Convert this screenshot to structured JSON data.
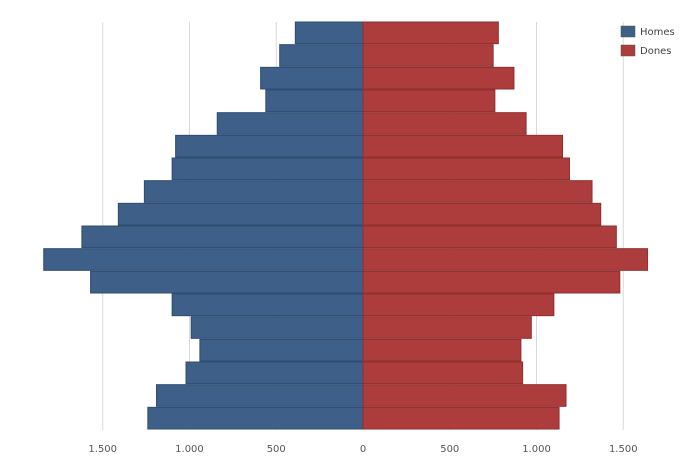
{
  "chart_data": {
    "type": "bar",
    "orientation": "horizontal-pyramid",
    "series": [
      {
        "name": "Homes",
        "color": "#3d5f88",
        "values": [
          390,
          480,
          590,
          560,
          840,
          1080,
          1100,
          1260,
          1410,
          1620,
          1840,
          1570,
          1100,
          990,
          940,
          1020,
          1190,
          1240
        ]
      },
      {
        "name": "Dones",
        "color": "#ad3c3d",
        "values": [
          780,
          750,
          870,
          760,
          940,
          1150,
          1190,
          1320,
          1370,
          1460,
          1640,
          1480,
          1100,
          970,
          910,
          920,
          1170,
          1130
        ]
      }
    ],
    "xlim": [
      -1850,
      1850
    ],
    "x_ticks": [
      {
        "value": -1500,
        "label": "1.500"
      },
      {
        "value": -1000,
        "label": "1.000"
      },
      {
        "value": -500,
        "label": "500"
      },
      {
        "value": 0,
        "label": "0"
      },
      {
        "value": 500,
        "label": "500"
      },
      {
        "value": 1000,
        "label": "1.000"
      },
      {
        "value": 1500,
        "label": "1.500"
      }
    ],
    "grid": true,
    "legend_position": "top-right",
    "title": "",
    "xlabel": "",
    "ylabel": ""
  }
}
